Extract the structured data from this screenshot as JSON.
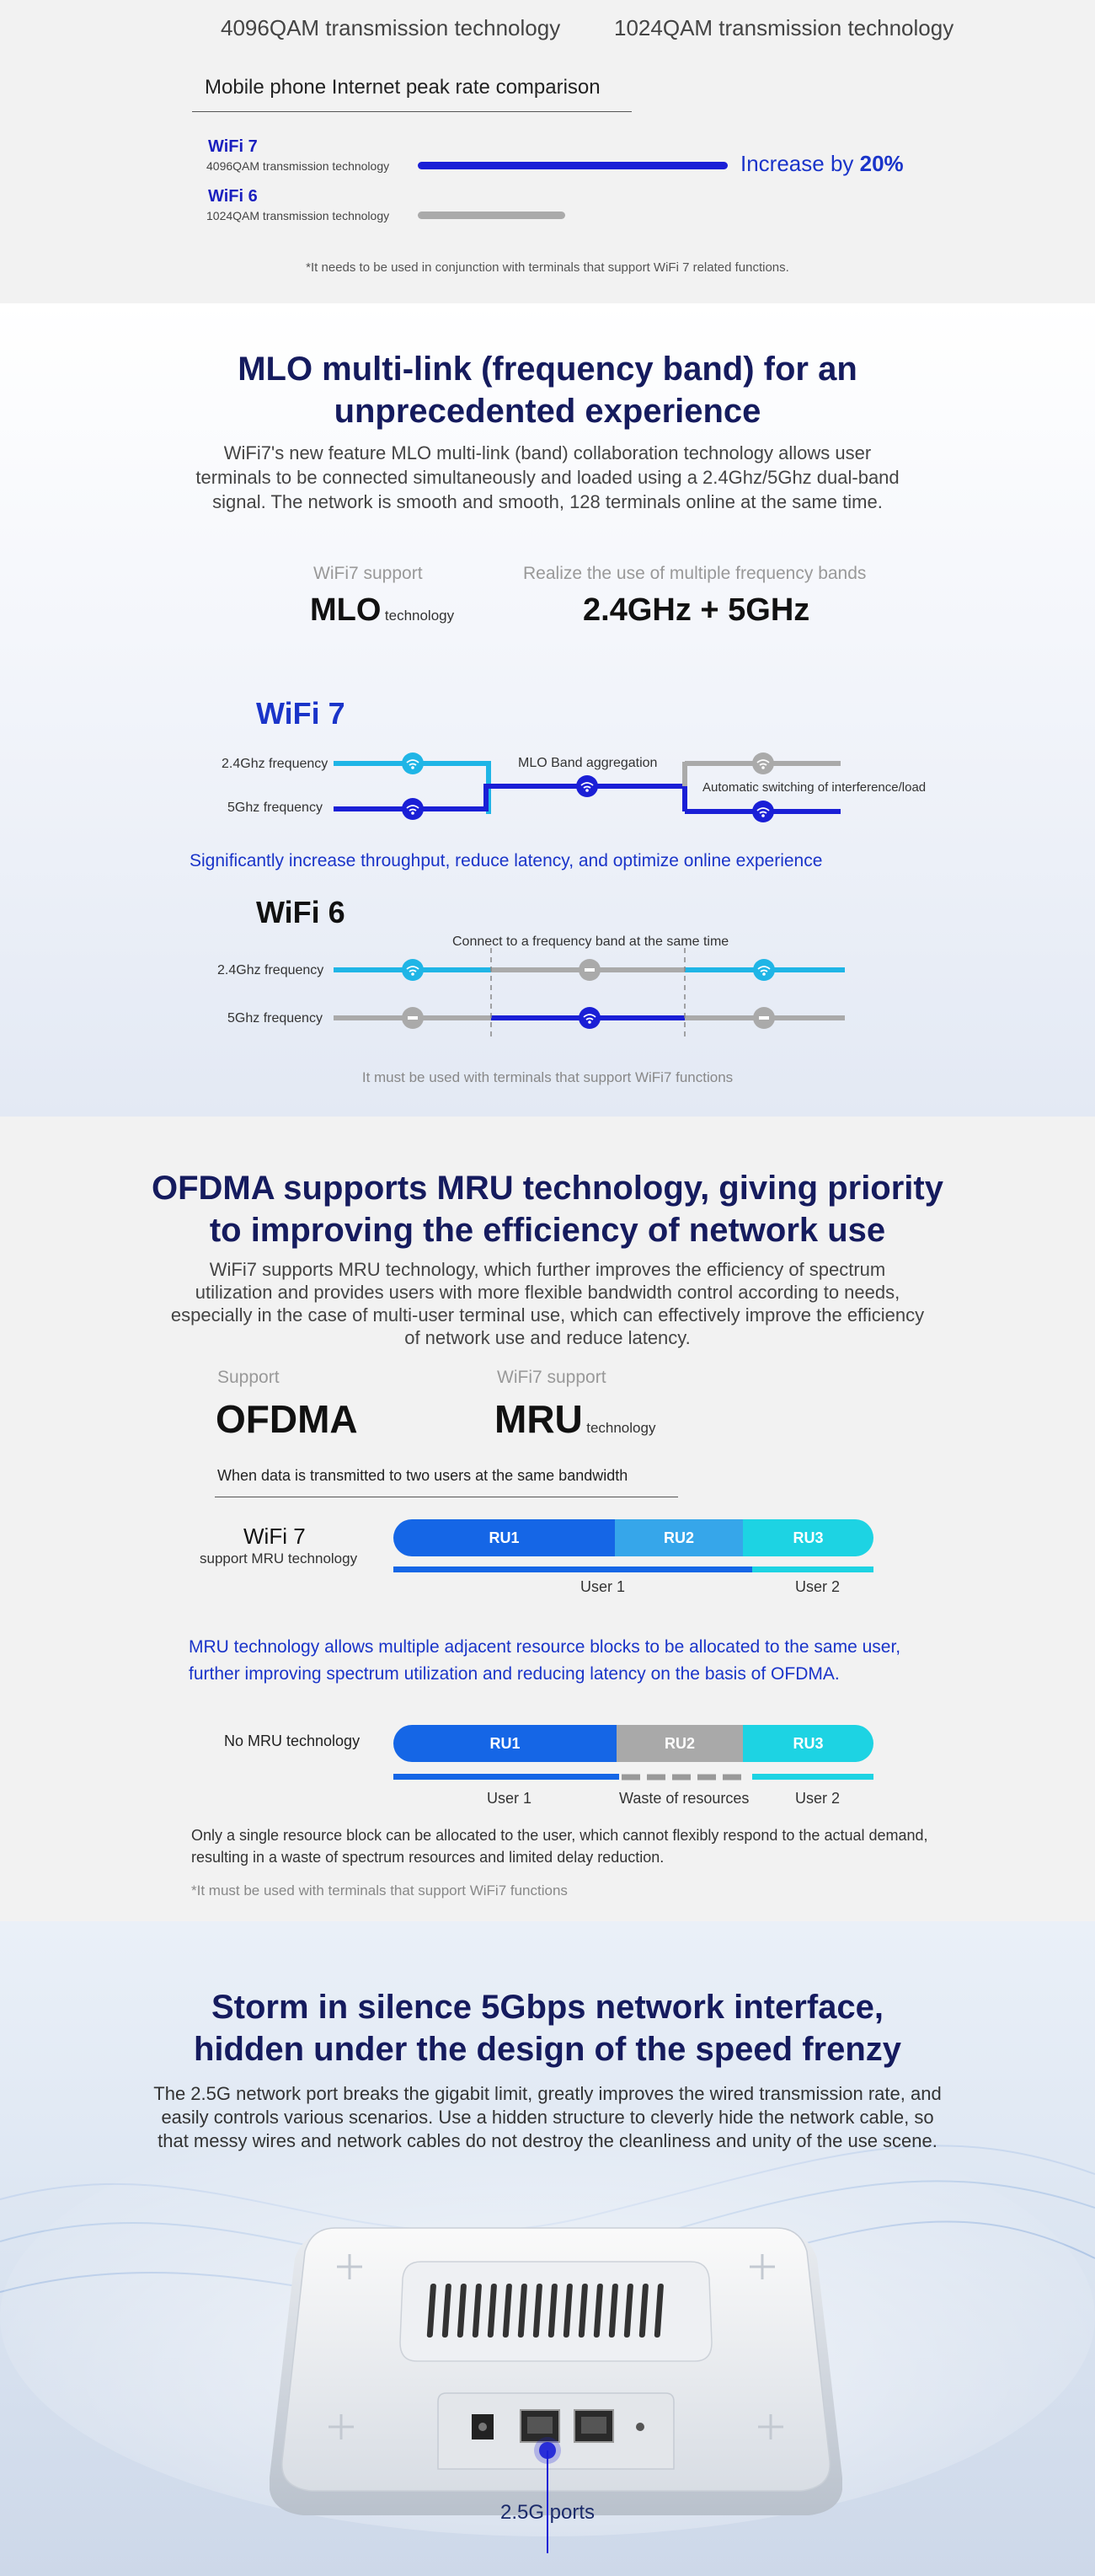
{
  "sec1": {
    "tech_left": "4096QAM transmission technology",
    "tech_right": "1024QAM transmission technology",
    "comparison_title": "Mobile phone Internet peak rate comparison",
    "wifi7": {
      "name": "WiFi 7",
      "sub": "4096QAM transmission technology"
    },
    "wifi6": {
      "name": "WiFi 6",
      "sub": "1024QAM transmission technology"
    },
    "increase_prefix": "Increase by",
    "increase_value": "20%",
    "footnote": "*It needs to be used in conjunction with terminals that support WiFi 7 related functions."
  },
  "sec2": {
    "title_line1": "MLO multi-link (frequency band) for an",
    "title_line2": "unprecedented experience",
    "para_line1": "WiFi7's new feature MLO multi-link (band) collaboration technology allows user",
    "para_line2": "terminals to be connected simultaneously and loaded using a 2.4Ghz/5Ghz dual-band",
    "para_line3": "signal. The network is smooth and smooth, 128 terminals online at the same time.",
    "support_label": "WiFi7 support",
    "mlo_big": "MLO",
    "mlo_small": "technology",
    "bands_label": "Realize the use of multiple frequency bands",
    "bands_value": "2.4GHz + 5GHz",
    "wifi7_head": "WiFi 7",
    "wifi6_head": "WiFi 6",
    "freq_24": "2.4Ghz frequency",
    "freq_5": "5Ghz frequency",
    "mlo_agg": "MLO Band aggregation",
    "auto_switch": "Automatic switching of interference/load",
    "blue_note": "Significantly increase throughput, reduce latency, and optimize online experience",
    "connect_one": "Connect to a frequency band at the same time",
    "footnote": "It must be used with terminals that support WiFi7 functions",
    "colors": {
      "cyan": "#1fb5e6",
      "blue": "#1a1fd6",
      "gray": "#aaaaaa"
    }
  },
  "sec3": {
    "title_line1": "OFDMA supports MRU technology, giving priority",
    "title_line2": "to improving the efficiency of network use",
    "para_line1": "WiFi7 supports MRU technology, which further improves the efficiency of spectrum",
    "para_line2": "utilization and provides users with more flexible bandwidth control according to needs,",
    "para_line3": "especially in the case of multi-user terminal use, which can effectively improve the efficiency",
    "para_line4": "of network use and reduce latency.",
    "support_label": "Support",
    "ofdma_big": "OFDMA",
    "wifi7_support_label": "WiFi7 support",
    "mru_big": "MRU",
    "mru_small": "technology",
    "bandwidth_title": "When data is transmitted to two users at the same bandwidth",
    "wifi7_label": "WiFi 7",
    "wifi7_sub": "support MRU technology",
    "ru1": "RU1",
    "ru2": "RU2",
    "ru3": "RU3",
    "user1": "User 1",
    "user2": "User 2",
    "mru_note_line1": "MRU technology allows multiple adjacent resource blocks to be allocated to the same user,",
    "mru_note_line2": "further improving spectrum utilization and reducing latency on the basis of OFDMA.",
    "no_mru_label": "No MRU technology",
    "waste": "Waste of resources",
    "expl_line1": "Only a single resource block can be allocated to the user, which cannot flexibly respond to the actual demand,",
    "expl_line2": "resulting in a waste of spectrum resources and limited delay reduction.",
    "footnote": "*It must be used with terminals that support WiFi7 functions"
  },
  "sec4": {
    "title_line1": "Storm in silence 5Gbps network interface,",
    "title_line2": "hidden under the design of the speed frenzy",
    "para_line1": "The 2.5G network port breaks the gigabit limit, greatly improves the wired transmission rate, and",
    "para_line2": "easily controls various scenarios. Use a hidden structure to cleverly hide the network cable, so",
    "para_line3": "that messy wires and network cables do not destroy the cleanliness and unity of the use scene.",
    "ports_label": "2.5G ports"
  }
}
